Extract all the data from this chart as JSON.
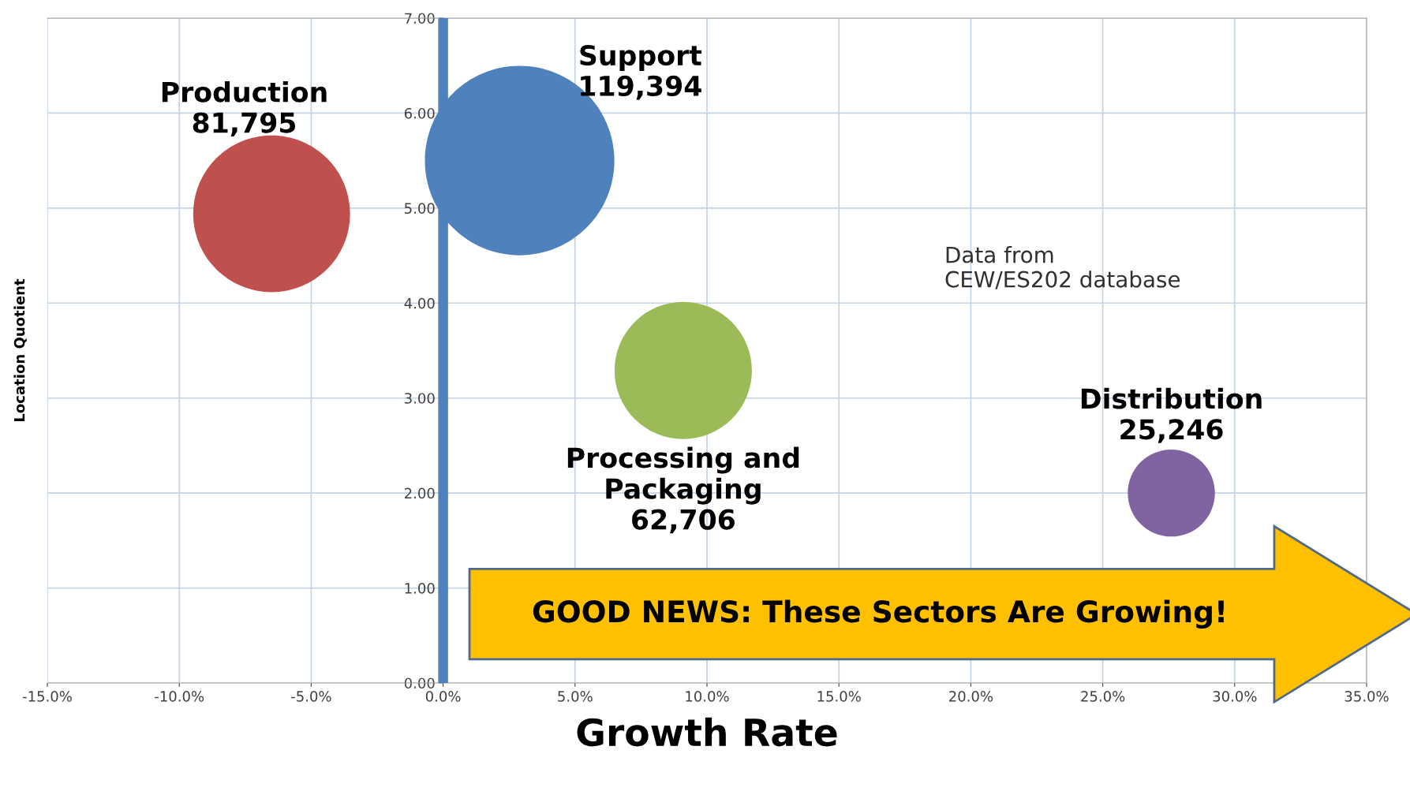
{
  "chart_data": {
    "type": "bubble",
    "xlabel": "Growth Rate",
    "ylabel": "Location Quotient",
    "xlim": [
      -15,
      35
    ],
    "xticks": [
      {
        "value": -15,
        "label": "-15.0%"
      },
      {
        "value": -10,
        "label": "-10.0%"
      },
      {
        "value": -5,
        "label": "-5.0%"
      },
      {
        "value": 0,
        "label": "0.0%"
      },
      {
        "value": 5,
        "label": "5.0%"
      },
      {
        "value": 10,
        "label": "10.0%"
      },
      {
        "value": 15,
        "label": "15.0%"
      },
      {
        "value": 20,
        "label": "20.0%"
      },
      {
        "value": 25,
        "label": "25.0%"
      },
      {
        "value": 30,
        "label": "30.0%"
      },
      {
        "value": 35,
        "label": "35.0%"
      }
    ],
    "ylim": [
      0,
      7
    ],
    "yticks": [
      {
        "value": 0,
        "label": "0.00"
      },
      {
        "value": 1,
        "label": "1.00"
      },
      {
        "value": 2,
        "label": "2.00"
      },
      {
        "value": 3,
        "label": "3.00"
      },
      {
        "value": 4,
        "label": "4.00"
      },
      {
        "value": 5,
        "label": "5.00"
      },
      {
        "value": 6,
        "label": "6.00"
      },
      {
        "value": 7,
        "label": "7.00"
      }
    ],
    "grid": true,
    "series": [
      {
        "name": "Production",
        "color": "#c0504d",
        "x": [
          -6.5
        ],
        "values": [
          4.94
        ],
        "sizes": [
          81795
        ],
        "value_labels": [
          "81,795"
        ]
      },
      {
        "name": "Support",
        "color": "#4f81bd",
        "x": [
          2.9
        ],
        "values": [
          5.5
        ],
        "sizes": [
          119394
        ],
        "value_labels": [
          "119,394"
        ]
      },
      {
        "name": "Processing and\nPackaging",
        "color": "#9bbb59",
        "x": [
          9.1
        ],
        "values": [
          3.29
        ],
        "sizes": [
          62706
        ],
        "value_labels": [
          "62,706"
        ]
      },
      {
        "name": "Distribution",
        "color": "#8064a2",
        "x": [
          27.6
        ],
        "values": [
          2.0
        ],
        "sizes": [
          25246
        ],
        "value_labels": [
          "25,246"
        ]
      }
    ],
    "ref_lines": [
      {
        "axis": "x",
        "value": 0,
        "color": "#4f81bd"
      }
    ],
    "annotations": [
      "GOOD NEWS: These Sectors Are Growing!",
      "Data from\nCEW/ES202 database"
    ]
  }
}
